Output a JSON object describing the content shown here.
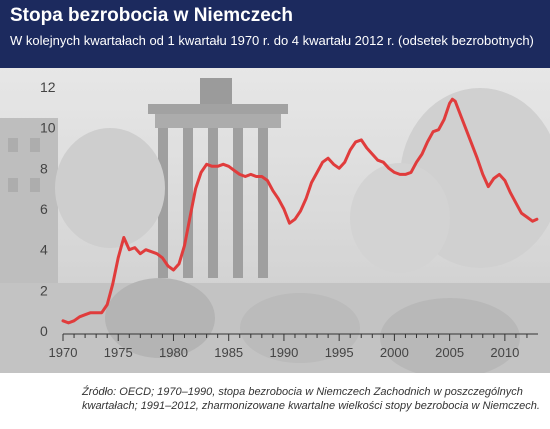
{
  "header": {
    "title": "Stopa bezrobocia w Niemczech",
    "subtitle": "W kolejnych kwartałach od 1 kwartału 1970 r. do 4 kwartału 2012 r. (odsetek bezrobotnych)"
  },
  "colors": {
    "header_bg": "#1c2a5e",
    "line": "#e03c3c",
    "photo_tint": "#a8a8a8"
  },
  "chart_data": {
    "type": "line",
    "title": "Stopa bezrobocia w Niemczech",
    "subtitle": "W kolejnych kwartałach od 1 kwartału 1970 r. do 4 kwartału 2012 r. (odsetek bezrobotnych)",
    "xlabel": "",
    "ylabel": "",
    "xlim": [
      1970,
      2013
    ],
    "ylim": [
      0,
      12
    ],
    "x_ticks": [
      1970,
      1975,
      1980,
      1985,
      1990,
      1995,
      2000,
      2005,
      2010
    ],
    "y_ticks": [
      0,
      2,
      4,
      6,
      8,
      10,
      12
    ],
    "grid": false,
    "legend": "none",
    "series": [
      {
        "x": [
          1970,
          1970.5,
          1971,
          1971.5,
          1972,
          1972.5,
          1973,
          1973.5,
          1974,
          1974.5,
          1975,
          1975.5,
          1976,
          1976.5,
          1977,
          1977.5,
          1978,
          1978.5,
          1979,
          1979.5,
          1980,
          1980.5,
          1981,
          1981.5,
          1982,
          1982.5,
          1983,
          1983.5,
          1984,
          1984.5,
          1985,
          1985.5,
          1986,
          1986.5,
          1987,
          1987.5,
          1988,
          1988.5,
          1989,
          1989.5,
          1990,
          1990.5,
          1991,
          1991.5,
          1992,
          1992.5,
          1993,
          1993.5,
          1994,
          1994.5,
          1995,
          1995.5,
          1996,
          1996.5,
          1997,
          1997.5,
          1998,
          1998.5,
          1999,
          1999.5,
          2000,
          2000.5,
          2001,
          2001.5,
          2002,
          2002.5,
          2003,
          2003.5,
          2004,
          2004.5,
          2005,
          2005.25,
          2005.5,
          2006,
          2006.5,
          2007,
          2007.5,
          2008,
          2008.5,
          2009,
          2009.5,
          2010,
          2010.5,
          2011,
          2011.5,
          2012,
          2012.5,
          2012.9
        ],
        "values": [
          0.5,
          0.4,
          0.5,
          0.7,
          0.8,
          0.9,
          0.9,
          0.9,
          1.3,
          2.3,
          3.6,
          4.6,
          4.0,
          4.1,
          3.8,
          4.0,
          3.9,
          3.8,
          3.6,
          3.2,
          3.0,
          3.3,
          4.2,
          5.6,
          7.0,
          7.8,
          8.2,
          8.1,
          8.1,
          8.2,
          8.1,
          7.9,
          7.7,
          7.6,
          7.7,
          7.6,
          7.6,
          7.4,
          6.9,
          6.5,
          6.0,
          5.3,
          5.5,
          5.9,
          6.5,
          7.3,
          7.8,
          8.3,
          8.5,
          8.2,
          8.0,
          8.3,
          8.9,
          9.3,
          9.4,
          9.0,
          8.7,
          8.4,
          8.3,
          8.0,
          7.8,
          7.7,
          7.7,
          7.8,
          8.3,
          8.7,
          9.3,
          9.8,
          9.9,
          10.4,
          11.2,
          11.4,
          11.3,
          10.6,
          9.9,
          9.2,
          8.5,
          7.7,
          7.1,
          7.5,
          7.7,
          7.4,
          6.8,
          6.3,
          5.8,
          5.6,
          5.4,
          5.5
        ]
      }
    ]
  },
  "source": {
    "text": "Źródło: OECD; 1970–1990, stopa bezrobocia w Niemczech Zachodnich w poszczególnych kwartałach; 1991–2012, zharmonizowane kwartalne wielkości stopy bezrobocia w Niemczech."
  }
}
